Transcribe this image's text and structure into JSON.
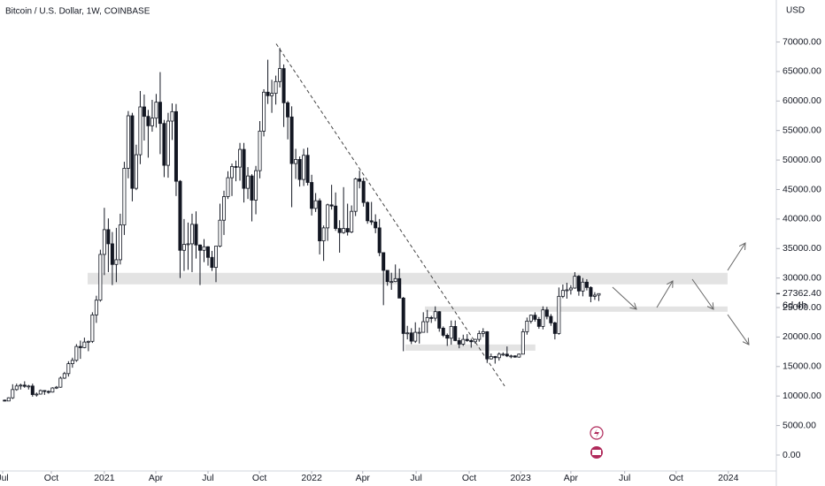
{
  "chart_data": {
    "type": "candlestick",
    "title": "Bitcoin / U.S. Dollar, 1W, COINBASE",
    "currency": "USD",
    "last_price": {
      "value": 27362.4,
      "label": "27362.40"
    },
    "countdown": "6d 4h",
    "xlim": [
      -1.17,
      190.2
    ],
    "ylim": [
      -2700,
      77120
    ],
    "grid": false,
    "up_color": "#ffffff",
    "down_color": "#131722",
    "xticks": [
      {
        "value": -0.5,
        "label": "Jul"
      },
      {
        "value": 11.7,
        "label": "Oct"
      },
      {
        "value": 25,
        "label": "2021"
      },
      {
        "value": 37.9,
        "label": "Apr"
      },
      {
        "value": 51,
        "label": "Jul"
      },
      {
        "value": 63.9,
        "label": "Oct"
      },
      {
        "value": 77,
        "label": "2022"
      },
      {
        "value": 89.8,
        "label": "Apr"
      },
      {
        "value": 103.2,
        "label": "Jul"
      },
      {
        "value": 116.5,
        "label": "Oct"
      },
      {
        "value": 129.4,
        "label": "2023"
      },
      {
        "value": 142,
        "label": "Apr"
      },
      {
        "value": 155.5,
        "label": "Jul"
      },
      {
        "value": 168.4,
        "label": "Oct"
      },
      {
        "value": 181.5,
        "label": "2024"
      }
    ],
    "yticks": [
      {
        "value": 0,
        "label": "0.00"
      },
      {
        "value": 5000,
        "label": "5000.00"
      },
      {
        "value": 10000,
        "label": "10000.00"
      },
      {
        "value": 15000,
        "label": "15000.00"
      },
      {
        "value": 20000,
        "label": "20000.00"
      },
      {
        "value": 25000,
        "label": "25000.00"
      },
      {
        "value": 30000,
        "label": "30000.00"
      },
      {
        "value": 35000,
        "label": "35000.00"
      },
      {
        "value": 40000,
        "label": "40000.00"
      },
      {
        "value": 45000,
        "label": "45000.00"
      },
      {
        "value": 50000,
        "label": "50000.00"
      },
      {
        "value": 55000,
        "label": "55000.00"
      },
      {
        "value": 60000,
        "label": "60000.00"
      },
      {
        "value": 65000,
        "label": "65000.00"
      },
      {
        "value": 70000,
        "label": "70000.00"
      }
    ],
    "zones": [
      {
        "x": [
          20.8,
          181.3
        ],
        "price": [
          28930,
          30880
        ]
      },
      {
        "x": [
          105.4,
          181.3
        ],
        "price": [
          24280,
          25180
        ]
      },
      {
        "x": [
          100.5,
          133.1
        ],
        "price": [
          17690,
          18740
        ]
      }
    ],
    "trendline": [
      [
        68.1,
        69700
      ],
      [
        125.4,
        11690
      ]
    ],
    "candles": [
      [
        9300,
        9400,
        9100,
        9160
      ],
      [
        9160,
        9800,
        9150,
        9700
      ],
      [
        9700,
        12000,
        9500,
        11100
      ],
      [
        11100,
        12100,
        10900,
        11700
      ],
      [
        11700,
        12100,
        11100,
        11850
      ],
      [
        11850,
        12500,
        11400,
        11650
      ],
      [
        11650,
        11900,
        11100,
        11700
      ],
      [
        11700,
        12100,
        9900,
        10250
      ],
      [
        10250,
        10600,
        9900,
        10330
      ],
      [
        10330,
        11100,
        10250,
        10930
      ],
      [
        10930,
        11000,
        10200,
        10780
      ],
      [
        10780,
        10950,
        10400,
        10670
      ],
      [
        10670,
        11500,
        10600,
        11370
      ],
      [
        11370,
        11700,
        11200,
        11500
      ],
      [
        11500,
        13300,
        11400,
        13030
      ],
      [
        13030,
        14100,
        12900,
        13800
      ],
      [
        13800,
        15900,
        13300,
        15480
      ],
      [
        15480,
        16500,
        14800,
        16050
      ],
      [
        16050,
        18800,
        15800,
        18400
      ],
      [
        18400,
        19400,
        16300,
        18200
      ],
      [
        18200,
        19900,
        18100,
        19150
      ],
      [
        19150,
        19400,
        17600,
        19270
      ],
      [
        19270,
        24200,
        19000,
        23750
      ],
      [
        23750,
        27000,
        22400,
        26250
      ],
      [
        26250,
        34800,
        26000,
        34000
      ],
      [
        34000,
        41900,
        30500,
        38200
      ],
      [
        38200,
        40100,
        31000,
        35800
      ],
      [
        35800,
        37800,
        28800,
        32300
      ],
      [
        32300,
        38500,
        29300,
        33100
      ],
      [
        33100,
        40900,
        32300,
        39000
      ],
      [
        39000,
        49700,
        37300,
        48600
      ],
      [
        48600,
        58300,
        46900,
        57500
      ],
      [
        57500,
        58000,
        43000,
        45200
      ],
      [
        45200,
        52600,
        44900,
        50900
      ],
      [
        50900,
        61700,
        49300,
        59000
      ],
      [
        59000,
        61100,
        53300,
        57400
      ],
      [
        57400,
        58500,
        50400,
        55800
      ],
      [
        55800,
        60200,
        54800,
        57100
      ],
      [
        57100,
        61200,
        55500,
        59800
      ],
      [
        59800,
        64900,
        51000,
        56200
      ],
      [
        56200,
        56800,
        47100,
        49100
      ],
      [
        49100,
        58000,
        47000,
        56600
      ],
      [
        56600,
        59600,
        53400,
        58200
      ],
      [
        58200,
        59500,
        43900,
        46400
      ],
      [
        46400,
        46600,
        30000,
        34700
      ],
      [
        34700,
        40000,
        31200,
        35700
      ],
      [
        35700,
        39400,
        31400,
        35800
      ],
      [
        35800,
        40900,
        31000,
        39100
      ],
      [
        39100,
        41300,
        33300,
        35600
      ],
      [
        35600,
        35700,
        28800,
        34700
      ],
      [
        34700,
        36600,
        32700,
        35300
      ],
      [
        35300,
        35400,
        32100,
        33500
      ],
      [
        33500,
        34600,
        31200,
        31800
      ],
      [
        31800,
        35400,
        29300,
        35400
      ],
      [
        35400,
        42600,
        35200,
        39800
      ],
      [
        39800,
        44800,
        37300,
        43800
      ],
      [
        43800,
        48100,
        43400,
        47000
      ],
      [
        47000,
        49400,
        43900,
        48900
      ],
      [
        48900,
        49900,
        46400,
        48800
      ],
      [
        48800,
        52900,
        46500,
        51800
      ],
      [
        51800,
        52900,
        42800,
        45200
      ],
      [
        45200,
        48800,
        43400,
        47300
      ],
      [
        47300,
        47600,
        39600,
        43200
      ],
      [
        43200,
        49000,
        40800,
        48200
      ],
      [
        48200,
        56600,
        46900,
        54900
      ],
      [
        54900,
        62000,
        54000,
        61500
      ],
      [
        61500,
        67000,
        59500,
        60900
      ],
      [
        60900,
        63600,
        58000,
        61300
      ],
      [
        61300,
        64300,
        59400,
        63300
      ],
      [
        63300,
        69000,
        62300,
        65500
      ],
      [
        65500,
        66200,
        55600,
        59700
      ],
      [
        59700,
        60000,
        53500,
        57300
      ],
      [
        57300,
        59100,
        42000,
        49400
      ],
      [
        49400,
        51900,
        46800,
        50100
      ],
      [
        50100,
        50600,
        45500,
        46700
      ],
      [
        46700,
        51900,
        45600,
        50800
      ],
      [
        50800,
        52100,
        45700,
        46200
      ],
      [
        46200,
        47500,
        40600,
        41800
      ],
      [
        41800,
        44400,
        41200,
        43100
      ],
      [
        43100,
        43500,
        34000,
        36300
      ],
      [
        36300,
        38900,
        32900,
        38500
      ],
      [
        38500,
        42600,
        36300,
        42400
      ],
      [
        42400,
        45800,
        41600,
        42200
      ],
      [
        42200,
        44500,
        38000,
        38400
      ],
      [
        38400,
        39800,
        34300,
        37700
      ],
      [
        37700,
        45400,
        37500,
        38400
      ],
      [
        38400,
        42600,
        37200,
        37800
      ],
      [
        37800,
        42300,
        37600,
        41300
      ],
      [
        41300,
        47000,
        40500,
        46800
      ],
      [
        46800,
        48200,
        45200,
        46400
      ],
      [
        46400,
        47000,
        42100,
        42800
      ],
      [
        42800,
        43000,
        39200,
        39700
      ],
      [
        39700,
        42900,
        39000,
        39500
      ],
      [
        39500,
        40800,
        37600,
        38500
      ],
      [
        38500,
        40000,
        33700,
        34300
      ],
      [
        34300,
        34300,
        25400,
        31300
      ],
      [
        31300,
        31300,
        28700,
        29400
      ],
      [
        29400,
        30900,
        28000,
        29400
      ],
      [
        29400,
        32300,
        29300,
        29900
      ],
      [
        29900,
        31600,
        26600,
        26600
      ],
      [
        26600,
        26800,
        17600,
        20600
      ],
      [
        20600,
        21900,
        19600,
        20700
      ],
      [
        20700,
        21500,
        18800,
        19300
      ],
      [
        19300,
        22500,
        19000,
        20800
      ],
      [
        20800,
        21600,
        18900,
        20800
      ],
      [
        20800,
        24200,
        20800,
        22600
      ],
      [
        22600,
        24600,
        20700,
        23300
      ],
      [
        23300,
        23600,
        22400,
        23200
      ],
      [
        23200,
        25200,
        22700,
        24300
      ],
      [
        24300,
        24400,
        20900,
        21500
      ],
      [
        21500,
        21800,
        20000,
        20300
      ],
      [
        20300,
        20600,
        18500,
        19800
      ],
      [
        19800,
        22800,
        18700,
        21800
      ],
      [
        21800,
        22800,
        19300,
        19400
      ],
      [
        19400,
        19900,
        18100,
        18800
      ],
      [
        18800,
        20400,
        18500,
        19600
      ],
      [
        19600,
        20500,
        19200,
        19400
      ],
      [
        19400,
        19700,
        18200,
        19200
      ],
      [
        19200,
        19700,
        18900,
        19600
      ],
      [
        19600,
        21100,
        19200,
        20600
      ],
      [
        20600,
        21500,
        20000,
        20900
      ],
      [
        20900,
        21000,
        15600,
        16300
      ],
      [
        16300,
        17200,
        16200,
        16700
      ],
      [
        16700,
        16800,
        15500,
        16500
      ],
      [
        16500,
        17400,
        16000,
        17100
      ],
      [
        17100,
        17400,
        16800,
        17100
      ],
      [
        17100,
        18400,
        16600,
        16800
      ],
      [
        16800,
        17000,
        16400,
        16800
      ],
      [
        16800,
        16900,
        16500,
        16600
      ],
      [
        16600,
        17200,
        16500,
        17100
      ],
      [
        17100,
        21400,
        17100,
        20900
      ],
      [
        20900,
        23300,
        20400,
        22700
      ],
      [
        22700,
        23800,
        22300,
        23700
      ],
      [
        23700,
        24200,
        22600,
        23000
      ],
      [
        23000,
        23400,
        21400,
        21800
      ],
      [
        21800,
        25200,
        21300,
        24600
      ],
      [
        24600,
        25100,
        23000,
        23500
      ],
      [
        23500,
        23900,
        21900,
        22400
      ],
      [
        22400,
        22600,
        19600,
        20600
      ],
      [
        20600,
        28400,
        20400,
        26900
      ],
      [
        26900,
        28900,
        26600,
        27900
      ],
      [
        27900,
        29200,
        26500,
        28000
      ],
      [
        28000,
        28800,
        27200,
        28300
      ],
      [
        28300,
        31000,
        28200,
        30300
      ],
      [
        30300,
        30500,
        27000,
        27800
      ],
      [
        27800,
        30000,
        26900,
        29300
      ],
      [
        29300,
        29800,
        27900,
        28400
      ],
      [
        28400,
        28600,
        25900,
        26900
      ],
      [
        26900,
        27600,
        26300,
        27100
      ],
      [
        27100,
        27400,
        26100,
        27362.4
      ]
    ]
  }
}
